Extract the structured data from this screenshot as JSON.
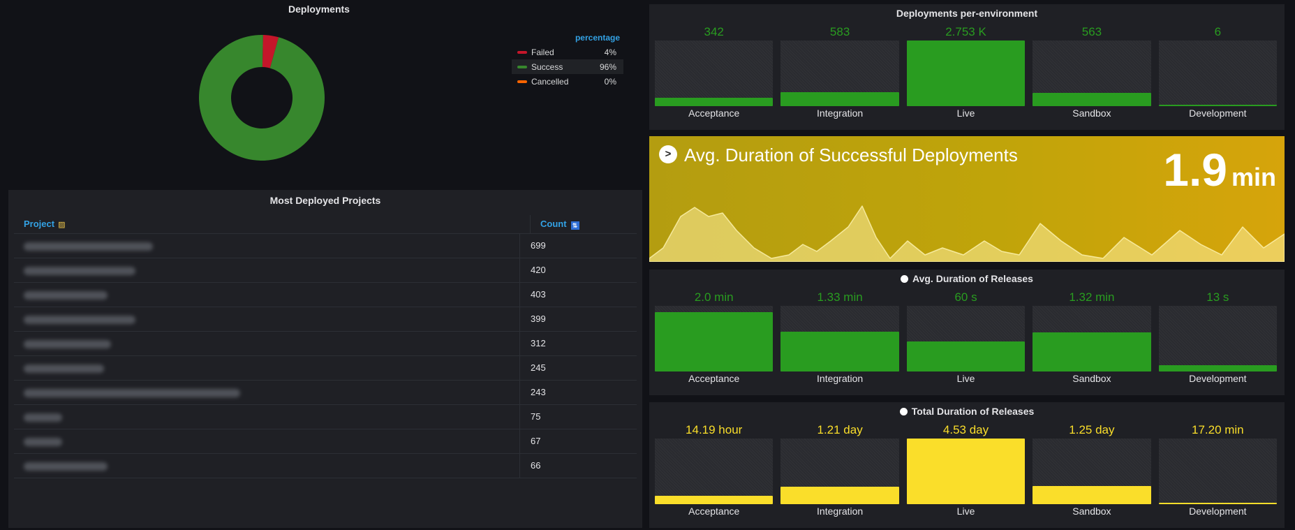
{
  "deployments": {
    "title": "Deployments",
    "legend_header": "percentage",
    "slices": [
      {
        "name": "Failed",
        "percent": 4,
        "label": "4%",
        "color": "#c4162a"
      },
      {
        "name": "Success",
        "percent": 96,
        "label": "96%",
        "color": "#37872d"
      },
      {
        "name": "Cancelled",
        "percent": 0,
        "label": "0%",
        "color": "#fa6400"
      }
    ]
  },
  "projects": {
    "title": "Most Deployed Projects",
    "col_project": "Project",
    "col_count": "Count",
    "rows": [
      {
        "count": "699"
      },
      {
        "count": "420"
      },
      {
        "count": "403"
      },
      {
        "count": "399"
      },
      {
        "count": "312"
      },
      {
        "count": "245"
      },
      {
        "count": "243"
      },
      {
        "count": "75"
      },
      {
        "count": "67"
      },
      {
        "count": "66"
      }
    ]
  },
  "per_env": {
    "title": "Deployments per-environment",
    "color": "#299c20",
    "max": 2753,
    "items": [
      {
        "label": "Acceptance",
        "display": "342",
        "value": 342
      },
      {
        "label": "Integration",
        "display": "583",
        "value": 583
      },
      {
        "label": "Live",
        "display": "2.753 K",
        "value": 2753
      },
      {
        "label": "Sandbox",
        "display": "563",
        "value": 563
      },
      {
        "label": "Development",
        "display": "6",
        "value": 6
      }
    ]
  },
  "avg_success": {
    "title": "Avg. Duration of Successful Deployments",
    "value": "1.9",
    "unit": "min",
    "icon": "stopwatch-icon"
  },
  "avg_releases": {
    "title": "Avg. Duration of Releases",
    "color": "#299c20",
    "max": 2.2,
    "items": [
      {
        "label": "Acceptance",
        "display": "2.0 min",
        "value": 2.0
      },
      {
        "label": "Integration",
        "display": "1.33 min",
        "value": 1.33
      },
      {
        "label": "Live",
        "display": "60 s",
        "value": 1.0
      },
      {
        "label": "Sandbox",
        "display": "1.32 min",
        "value": 1.32
      },
      {
        "label": "Development",
        "display": "13 s",
        "value": 0.22
      }
    ]
  },
  "total_releases": {
    "title": "Total Duration of Releases",
    "color": "#fade2a",
    "max": 6523,
    "items": [
      {
        "label": "Acceptance",
        "display": "14.19 hour",
        "value": 851
      },
      {
        "label": "Integration",
        "display": "1.21 day",
        "value": 1742
      },
      {
        "label": "Live",
        "display": "4.53 day",
        "value": 6523
      },
      {
        "label": "Sandbox",
        "display": "1.25 day",
        "value": 1800
      },
      {
        "label": "Development",
        "display": "17.20 min",
        "value": 17.2
      }
    ]
  }
}
